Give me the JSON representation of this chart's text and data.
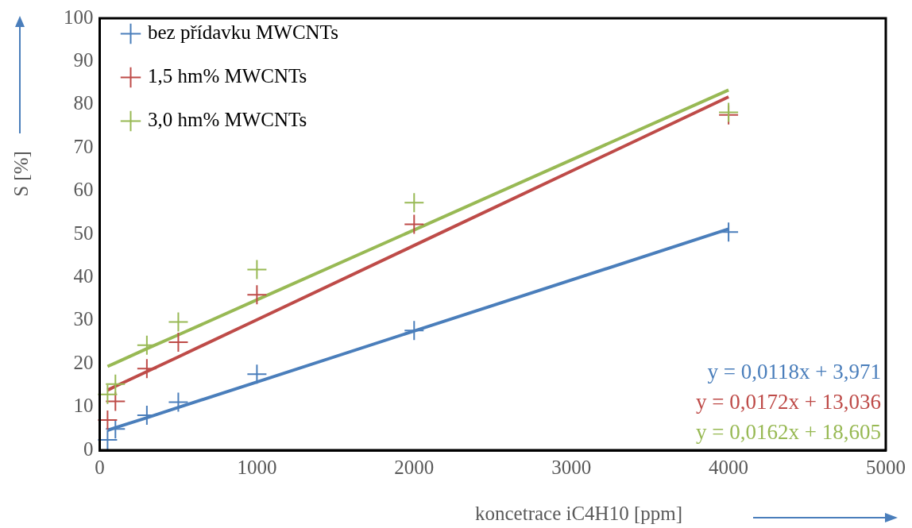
{
  "chart_data": {
    "type": "scatter",
    "xlabel": "koncetrace iC4H10 [ppm]",
    "ylabel": "S [%]",
    "xlim": [
      0,
      5000
    ],
    "xticks": [
      0,
      1000,
      2000,
      3000,
      4000,
      5000
    ],
    "ylim": [
      0,
      100
    ],
    "yticks": [
      0,
      10,
      20,
      30,
      40,
      50,
      60,
      70,
      80,
      90,
      100
    ],
    "grid": false,
    "legend": "top left",
    "marker": "cross",
    "x": [
      50,
      100,
      300,
      500,
      1000,
      2000,
      4000
    ],
    "series": [
      {
        "name": "bez přídavku MWCNTs",
        "color": "#4a7ebb",
        "values": [
          2.4,
          4.9,
          8.1,
          11.1,
          17.6,
          27.7,
          50.5
        ]
      },
      {
        "name": "1,5 hm% MWCNTs",
        "color": "#be4b48",
        "values": [
          7.0,
          11.3,
          18.9,
          25.0,
          36.0,
          52.3,
          77.6
        ]
      },
      {
        "name": "3,0 hm% MWCNTs",
        "color": "#98b954",
        "values": [
          12.9,
          15.3,
          24.3,
          29.7,
          41.8,
          57.3,
          78.2
        ]
      },
      {
        "type": "line",
        "marker": "none",
        "color": "#4a7ebb",
        "values": [
          4.6,
          5.2,
          7.5,
          9.9,
          15.8,
          27.6,
          51.2
        ]
      },
      {
        "type": "line",
        "marker": "none",
        "color": "#be4b48",
        "values": [
          13.9,
          14.8,
          18.2,
          21.6,
          30.2,
          47.4,
          81.8
        ]
      },
      {
        "type": "line",
        "marker": "none",
        "color": "#98b954",
        "values": [
          19.4,
          20.2,
          23.5,
          26.7,
          34.8,
          51.0,
          83.4
        ]
      }
    ],
    "annotations": [
      "y = 0,0118x + 3,971",
      "y = 0,0172x + 13,036",
      "y = 0,0162x + 18,605"
    ]
  }
}
